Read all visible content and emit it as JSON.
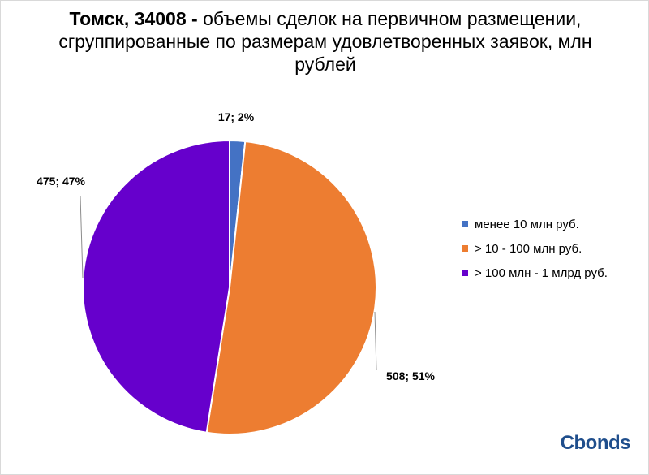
{
  "chart_data": {
    "type": "pie",
    "title_bold": "Томск, 34008 -",
    "title_rest": " объемы сделок на первичном размещении, сгруппированные по размерам удовлетворенных заявок, млн рублей",
    "slices": [
      {
        "name": "менее 10 млн руб.",
        "value": 17,
        "percent": 2,
        "label": "17; 2%",
        "color": "#4472c4"
      },
      {
        "name": "> 10 - 100 млн руб.",
        "value": 508,
        "percent": 51,
        "label": "508; 51%",
        "color": "#ed7d31"
      },
      {
        "name": "> 100 млн - 1 млрд руб.",
        "value": 475,
        "percent": 47,
        "label": "475; 47%",
        "color": "#6600cc"
      }
    ],
    "legend_position": "right"
  },
  "logo": {
    "text": "Cbonds"
  }
}
